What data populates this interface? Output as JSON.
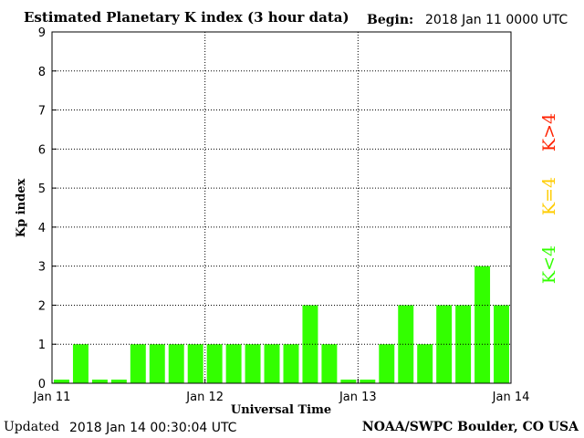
{
  "header": {
    "title": "Estimated Planetary K index (3 hour data)",
    "begin_label": "Begin:",
    "begin_value": "2018 Jan 11 0000 UTC"
  },
  "footer": {
    "updated_label": "Updated",
    "updated_value": "2018 Jan 14 00:30:04 UTC",
    "source": "NOAA/SWPC Boulder, CO USA"
  },
  "colors": {
    "bar": "#33ff00",
    "grid": "#000000",
    "legend_low": "#33ff00",
    "legend_mid": "#ffcc00",
    "legend_high": "#ff2200"
  },
  "legend": [
    {
      "label": "K<4",
      "color": "#33ff00"
    },
    {
      "label": "K=4",
      "color": "#ffcc00"
    },
    {
      "label": "K>4",
      "color": "#ff2200"
    }
  ],
  "chart_data": {
    "type": "bar",
    "title": "Estimated Planetary K index (3 hour data)",
    "xlabel": "Universal Time",
    "ylabel": "Kp index",
    "ylim": [
      0,
      9
    ],
    "yticks": [
      0,
      1,
      2,
      3,
      4,
      5,
      6,
      7,
      8,
      9
    ],
    "x_tick_labels": [
      "Jan 11",
      "Jan 12",
      "Jan 13",
      "Jan 14"
    ],
    "grid": true,
    "interval_hours": 3,
    "values": [
      0,
      1,
      0,
      0,
      1,
      1,
      1,
      1,
      1,
      1,
      1,
      1,
      1,
      2,
      1,
      0,
      0,
      1,
      2,
      1,
      2,
      2,
      3,
      2
    ]
  }
}
